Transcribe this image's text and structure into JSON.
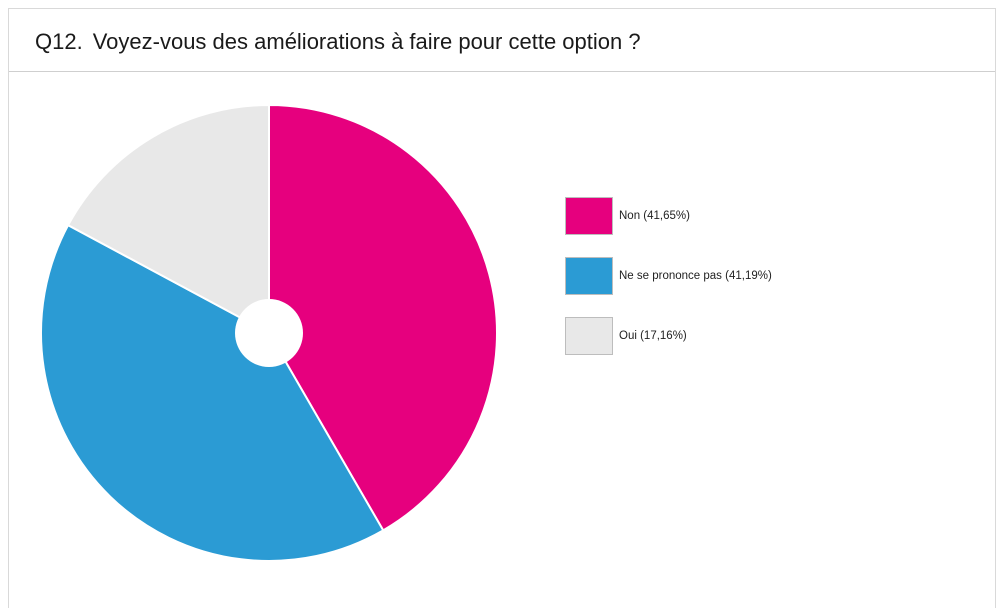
{
  "question": {
    "number": "Q12.",
    "text": "Voyez-vous des améliorations à faire pour cette option ?"
  },
  "chart_data": {
    "type": "pie",
    "title": "Q12.  Voyez-vous des améliorations à faire pour cette option ?",
    "legend_position": "right",
    "slices": [
      {
        "label": "Non",
        "value": 41.65,
        "legend": "Non (41,65%)",
        "color": "#e6007e"
      },
      {
        "label": "Ne se prononce pas",
        "value": 41.19,
        "legend": "Ne se prononce pas (41,19%)",
        "color": "#2b9bd4"
      },
      {
        "label": "Oui",
        "value": 17.16,
        "legend": "Oui (17,16%)",
        "color": "#e8e8e8"
      }
    ]
  }
}
